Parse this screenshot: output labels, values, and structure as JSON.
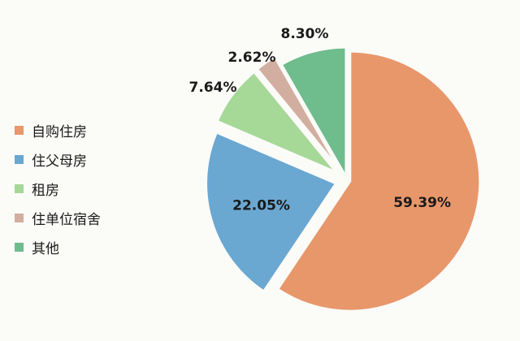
{
  "chart_data": {
    "type": "pie",
    "categories": [
      "自购住房",
      "住父母房",
      "租房",
      "住单位宿舍",
      "其他"
    ],
    "values": [
      59.39,
      22.05,
      7.64,
      2.62,
      8.3
    ],
    "value_labels": [
      "59.39%",
      "22.05%",
      "7.64%",
      "2.62%",
      "8.30%"
    ],
    "colors": [
      "#e8976b",
      "#6aa8d2",
      "#a6d898",
      "#d2aea0",
      "#6fbc8d"
    ],
    "legend_placement": "left"
  }
}
